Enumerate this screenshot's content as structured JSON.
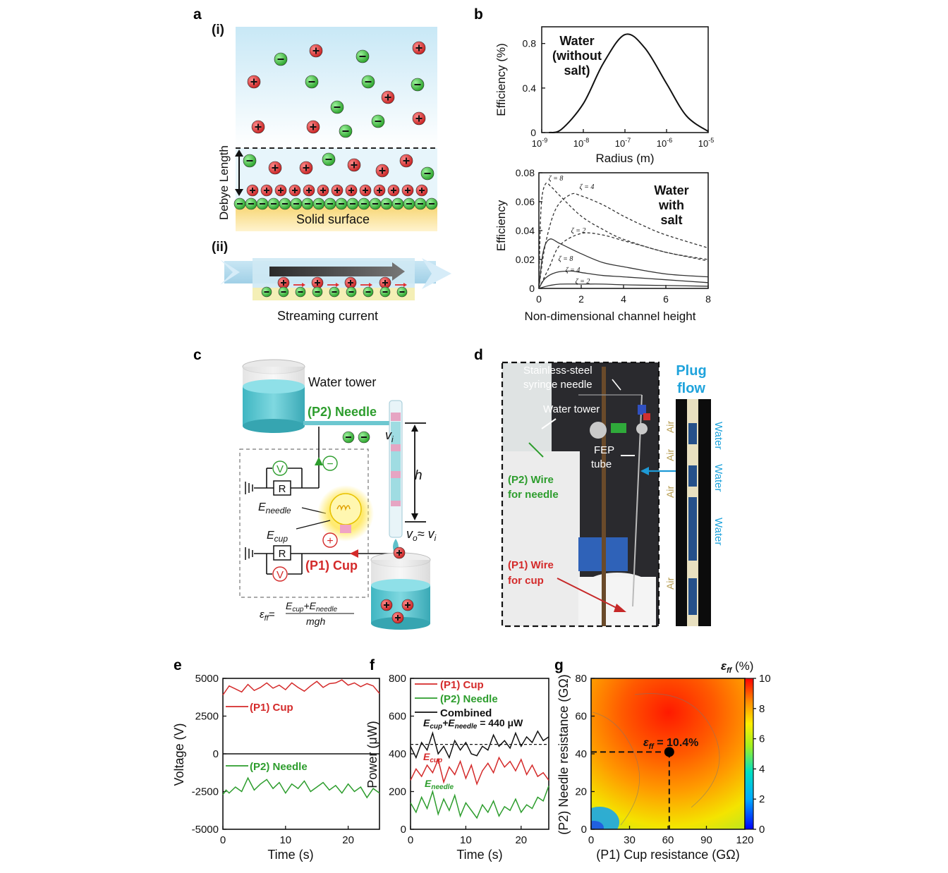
{
  "panels": {
    "a": "a",
    "b": "b",
    "c": "c",
    "d": "d",
    "e": "e",
    "f": "f",
    "g": "g"
  },
  "a": {
    "sub_i": "(i)",
    "sub_ii": "(ii)",
    "debye": "Debye Length",
    "surface": "Solid surface",
    "streaming": "Streaming current"
  },
  "b": {
    "top_label": [
      "Water",
      "(without",
      "salt)"
    ],
    "bottom_label": [
      "Water",
      "with",
      "salt"
    ],
    "zeta": [
      "ζ = 8",
      "ζ = 4",
      "ζ = 2",
      "ζ = 8",
      "ζ = 4",
      "ζ = 2"
    ]
  },
  "c": {
    "water_tower": "Water tower",
    "needle": "(P2) Needle",
    "cup": "(P1) Cup",
    "vi": "v",
    "vi_sub": "i",
    "h": "h",
    "vo": "v",
    "vo_rest": "≈ v",
    "e_needle": "E",
    "e_needle_sub": "needle",
    "e_cup": "E",
    "e_cup_sub": "cup",
    "R": "R",
    "V": "V",
    "plus": "+",
    "minus": "−",
    "eq_lhs": "ε",
    "eq_lhs_sub": "ff",
    "eq_num": "E",
    "eq_num_sub1": "cup",
    "eq_num_plus": "+E",
    "eq_num_sub2": "needle",
    "eq_den": "mgh"
  },
  "d": {
    "syringe1": "Stainless-steel",
    "syringe2": "syringe needle",
    "water_tower": "Water tower",
    "fep1": "FEP",
    "fep2": "tube",
    "p2_1": "(P2) Wire",
    "p2_2": "for needle",
    "p1_1": "(P1) Wire",
    "p1_2": "for cup",
    "plug1": "Plug",
    "plug2": "flow",
    "air": [
      "Air",
      "Air",
      "Air",
      "Air"
    ],
    "water": [
      "Water",
      "Water",
      "Water"
    ]
  },
  "chart_data": [
    {
      "panel": "b-top",
      "type": "line",
      "xscale": "log",
      "xlabel": "Radius (m)",
      "ylabel": "Efficiency (%)",
      "xticks": [
        "10-9",
        "10-8",
        "10-7",
        "10-6",
        "10-5"
      ],
      "yticks": [
        "0",
        "0.4",
        "0.8"
      ],
      "xlim": [
        1e-09,
        1e-05
      ],
      "ylim": [
        0,
        0.95
      ],
      "series": [
        {
          "x": [
            1.5e-09,
            3e-09,
            1e-08,
            3e-08,
            1e-07,
            3e-07,
            1e-06,
            3e-06,
            1e-05
          ],
          "y": [
            0.0,
            0.03,
            0.26,
            0.62,
            0.88,
            0.76,
            0.44,
            0.15,
            0.01
          ]
        }
      ]
    },
    {
      "panel": "b-bottom",
      "type": "line",
      "xlabel": "Non-dimensional channel height",
      "ylabel": "Efficiency",
      "xticks": [
        "0",
        "2",
        "4",
        "6",
        "8"
      ],
      "yticks": [
        "0",
        "0.02",
        "0.04",
        "0.06",
        "0.08"
      ],
      "xlim": [
        0,
        8
      ],
      "ylim": [
        0,
        0.08
      ],
      "series": [
        {
          "name": "ζ = 8",
          "style": "dashed",
          "x": [
            0,
            0.1,
            0.3,
            0.6,
            1,
            2,
            3,
            4,
            6,
            8
          ],
          "y": [
            0,
            0.055,
            0.072,
            0.07,
            0.064,
            0.05,
            0.041,
            0.034,
            0.025,
            0.02
          ]
        },
        {
          "name": "ζ = 4",
          "style": "dashed",
          "x": [
            0,
            0.3,
            0.8,
            1.5,
            2,
            3,
            4,
            5,
            6,
            8
          ],
          "y": [
            0,
            0.03,
            0.055,
            0.065,
            0.064,
            0.058,
            0.05,
            0.043,
            0.037,
            0.028
          ]
        },
        {
          "name": "ζ = 2",
          "style": "dashed",
          "x": [
            0,
            0.5,
            1,
            2,
            3,
            4,
            5,
            6,
            8
          ],
          "y": [
            0,
            0.015,
            0.03,
            0.038,
            0.037,
            0.033,
            0.029,
            0.025,
            0.019
          ]
        },
        {
          "name": "ζ = 8",
          "style": "solid",
          "x": [
            0,
            0.2,
            0.5,
            1,
            2,
            3,
            4,
            6,
            8
          ],
          "y": [
            0,
            0.025,
            0.034,
            0.031,
            0.024,
            0.018,
            0.015,
            0.01,
            0.008
          ]
        },
        {
          "name": "ζ = 4",
          "style": "solid",
          "x": [
            0,
            0.3,
            0.8,
            1.5,
            2,
            3,
            4,
            6,
            8
          ],
          "y": [
            0,
            0.007,
            0.011,
            0.012,
            0.011,
            0.009,
            0.008,
            0.006,
            0.004
          ]
        },
        {
          "name": "ζ = 2",
          "style": "solid",
          "x": [
            0,
            0.5,
            1,
            2,
            3,
            4,
            6,
            8
          ],
          "y": [
            0,
            0.002,
            0.003,
            0.003,
            0.003,
            0.0025,
            0.002,
            0.0015
          ]
        }
      ]
    },
    {
      "panel": "e",
      "type": "line",
      "xlabel": "Time (s)",
      "ylabel": "Voltage (V)",
      "xticks": [
        "0",
        "10",
        "20"
      ],
      "yticks": [
        "5000",
        "2500",
        "0",
        "-2500",
        "-5000"
      ],
      "xlim": [
        0,
        25
      ],
      "ylim": [
        -5000,
        5000
      ],
      "series": [
        {
          "name": "(P1) Cup",
          "color": "#d42a2a",
          "x": [
            0,
            0.5,
            1,
            2,
            3,
            4,
            5,
            6,
            7,
            8,
            9,
            10,
            11,
            12,
            13,
            14,
            15,
            16,
            17,
            18,
            19,
            20,
            21,
            22,
            23,
            24,
            25
          ],
          "y": [
            3900,
            4200,
            4500,
            4300,
            4100,
            4600,
            4200,
            4400,
            4700,
            4350,
            4550,
            4250,
            4700,
            4400,
            4150,
            4500,
            4800,
            4400,
            4650,
            4700,
            4900,
            4550,
            4700,
            4450,
            4650,
            4500,
            4000
          ]
        },
        {
          "name": "(P2) Needle",
          "color": "#2d9d2d",
          "x": [
            0,
            0.5,
            1,
            2,
            3,
            4,
            5,
            6,
            7,
            8,
            9,
            10,
            11,
            12,
            13,
            14,
            15,
            16,
            17,
            18,
            19,
            20,
            21,
            22,
            23,
            24,
            25
          ],
          "y": [
            -2700,
            -2400,
            -2600,
            -2200,
            -2500,
            -1600,
            -2400,
            -2000,
            -1700,
            -2300,
            -1900,
            -2600,
            -2000,
            -2300,
            -1800,
            -2500,
            -2200,
            -1900,
            -2400,
            -2100,
            -2600,
            -2000,
            -2500,
            -2200,
            -2900,
            -2300,
            -2600
          ]
        }
      ]
    },
    {
      "panel": "f",
      "type": "line",
      "xlabel": "Time (s)",
      "ylabel": "Power (μW)",
      "xticks": [
        "0",
        "10",
        "20"
      ],
      "yticks": [
        "800",
        "600",
        "400",
        "200",
        "0"
      ],
      "xlim": [
        0,
        25
      ],
      "ylim": [
        0,
        800
      ],
      "legend": [
        "(P1) Cup",
        "(P2) Needle",
        "Combined"
      ],
      "annotation": "E_cup+E_needle = 440 μW",
      "hline": 450,
      "series_labels": {
        "cup": "E",
        "cup_sub": "cup",
        "needle": "E",
        "needle_sub": "needle"
      },
      "series": [
        {
          "name": "(P1) Cup",
          "color": "#d42a2a",
          "x": [
            0,
            1,
            2,
            3,
            4,
            5,
            6,
            7,
            8,
            9,
            10,
            11,
            12,
            13,
            14,
            15,
            16,
            17,
            18,
            19,
            20,
            21,
            22,
            23,
            24,
            25
          ],
          "y": [
            260,
            320,
            280,
            340,
            300,
            370,
            250,
            330,
            290,
            360,
            270,
            340,
            240,
            310,
            350,
            300,
            380,
            330,
            360,
            310,
            370,
            290,
            340,
            280,
            300,
            260
          ]
        },
        {
          "name": "(P2) Needle",
          "color": "#2d9d2d",
          "x": [
            0,
            1,
            2,
            3,
            4,
            5,
            6,
            7,
            8,
            9,
            10,
            11,
            12,
            13,
            14,
            15,
            16,
            17,
            18,
            19,
            20,
            21,
            22,
            23,
            24,
            25
          ],
          "y": [
            140,
            90,
            170,
            110,
            200,
            80,
            160,
            100,
            180,
            70,
            140,
            100,
            60,
            130,
            90,
            150,
            70,
            120,
            100,
            160,
            90,
            130,
            110,
            170,
            150,
            230
          ]
        },
        {
          "name": "Combined",
          "color": "#111111",
          "x": [
            0,
            1,
            2,
            3,
            4,
            5,
            6,
            7,
            8,
            9,
            10,
            11,
            12,
            13,
            14,
            15,
            16,
            17,
            18,
            19,
            20,
            21,
            22,
            23,
            24,
            25
          ],
          "y": [
            440,
            380,
            460,
            420,
            510,
            400,
            440,
            380,
            470,
            420,
            460,
            400,
            390,
            440,
            420,
            500,
            440,
            470,
            430,
            510,
            440,
            490,
            460,
            520,
            470,
            490
          ]
        }
      ]
    },
    {
      "panel": "g",
      "type": "heatmap",
      "xlabel": "(P1) Cup resistance (GΩ)",
      "ylabel": "(P2) Needle resistance (GΩ)",
      "xticks": [
        "0",
        "30",
        "60",
        "90",
        "120"
      ],
      "yticks": [
        "0",
        "20",
        "40",
        "60",
        "80"
      ],
      "xlim": [
        0,
        120
      ],
      "ylim": [
        0,
        80
      ],
      "colorbar_title": "ε",
      "colorbar_title_sub": "ff",
      "colorbar_unit": " (%)",
      "colorbar_ticks": [
        "0",
        "2",
        "4",
        "6",
        "8",
        "10"
      ],
      "peak": {
        "x": 61,
        "y": 41,
        "value": 10.4
      },
      "peak_label_prefix": "ε",
      "peak_label_sub": "ff",
      "peak_label_value": " = 10.4%"
    }
  ]
}
